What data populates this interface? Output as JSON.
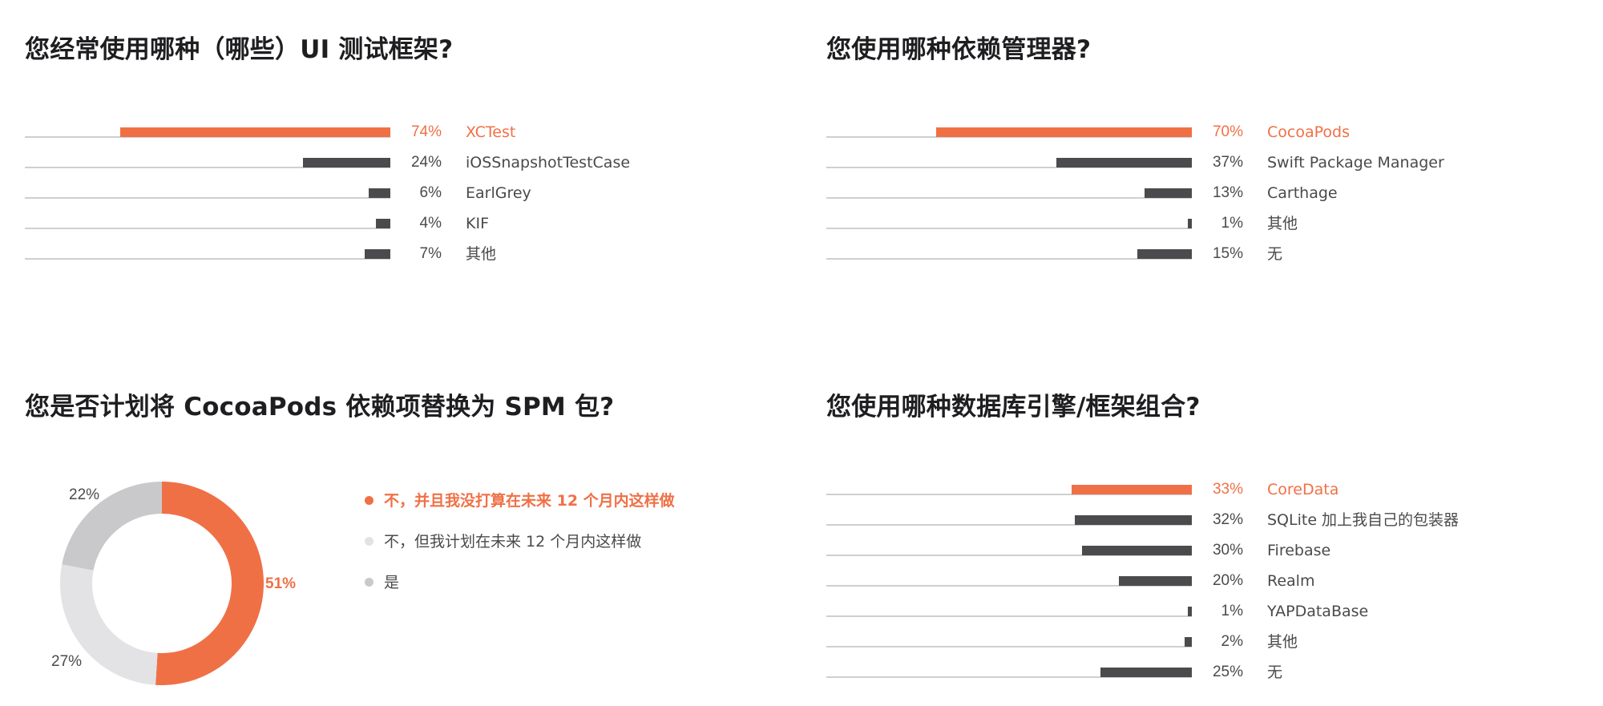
{
  "colors": {
    "highlight": "#f07046",
    "bar": "#4b4b4e",
    "track": "#cfcfd2",
    "slice_light": "#e3e3e5",
    "slice_mid": "#c9c9cb"
  },
  "chart_data": [
    {
      "type": "bar",
      "orientation": "horizontal",
      "title": "您经常使用哪种（哪些）UI 测试框架?",
      "categories": [
        "XCTest",
        "iOSSnapshotTestCase",
        "EarlGrey",
        "KIF",
        "其他"
      ],
      "values": [
        74,
        24,
        6,
        4,
        7
      ],
      "value_labels": [
        "74%",
        "24%",
        "6%",
        "4%",
        "7%"
      ],
      "unit": "%",
      "highlight_index": 0,
      "xlim": [
        0,
        100
      ]
    },
    {
      "type": "bar",
      "orientation": "horizontal",
      "title": "您使用哪种依赖管理器?",
      "categories": [
        "CocoaPods",
        "Swift Package Manager",
        "Carthage",
        "其他",
        "无"
      ],
      "values": [
        70,
        37,
        13,
        1,
        15
      ],
      "value_labels": [
        "70%",
        "37%",
        "13%",
        "1%",
        "15%"
      ],
      "unit": "%",
      "highlight_index": 0,
      "xlim": [
        0,
        100
      ]
    },
    {
      "type": "pie",
      "donut": true,
      "title": "您是否计划将 CocoaPods 依赖项替换为 SPM 包?",
      "labels": [
        "不，并且我没打算在未来 12 个月内这样做",
        "不，但我计划在未来 12 个月内这样做",
        "是"
      ],
      "values": [
        51,
        27,
        22
      ],
      "value_labels": [
        "51%",
        "27%",
        "22%"
      ],
      "colors": [
        "#f07046",
        "#e3e3e5",
        "#c9c9cb"
      ],
      "highlight_index": 0,
      "legend_position": "right"
    },
    {
      "type": "bar",
      "orientation": "horizontal",
      "title": "您使用哪种数据库引擎/框架组合?",
      "categories": [
        "CoreData",
        "SQLite 加上我自己的包装器",
        "Firebase",
        "Realm",
        "YAPDataBase",
        "其他",
        "无"
      ],
      "values": [
        33,
        32,
        30,
        20,
        1,
        2,
        25
      ],
      "value_labels": [
        "33%",
        "32%",
        "30%",
        "20%",
        "1%",
        "2%",
        "25%"
      ],
      "unit": "%",
      "highlight_index": 0,
      "xlim": [
        0,
        100
      ]
    }
  ]
}
